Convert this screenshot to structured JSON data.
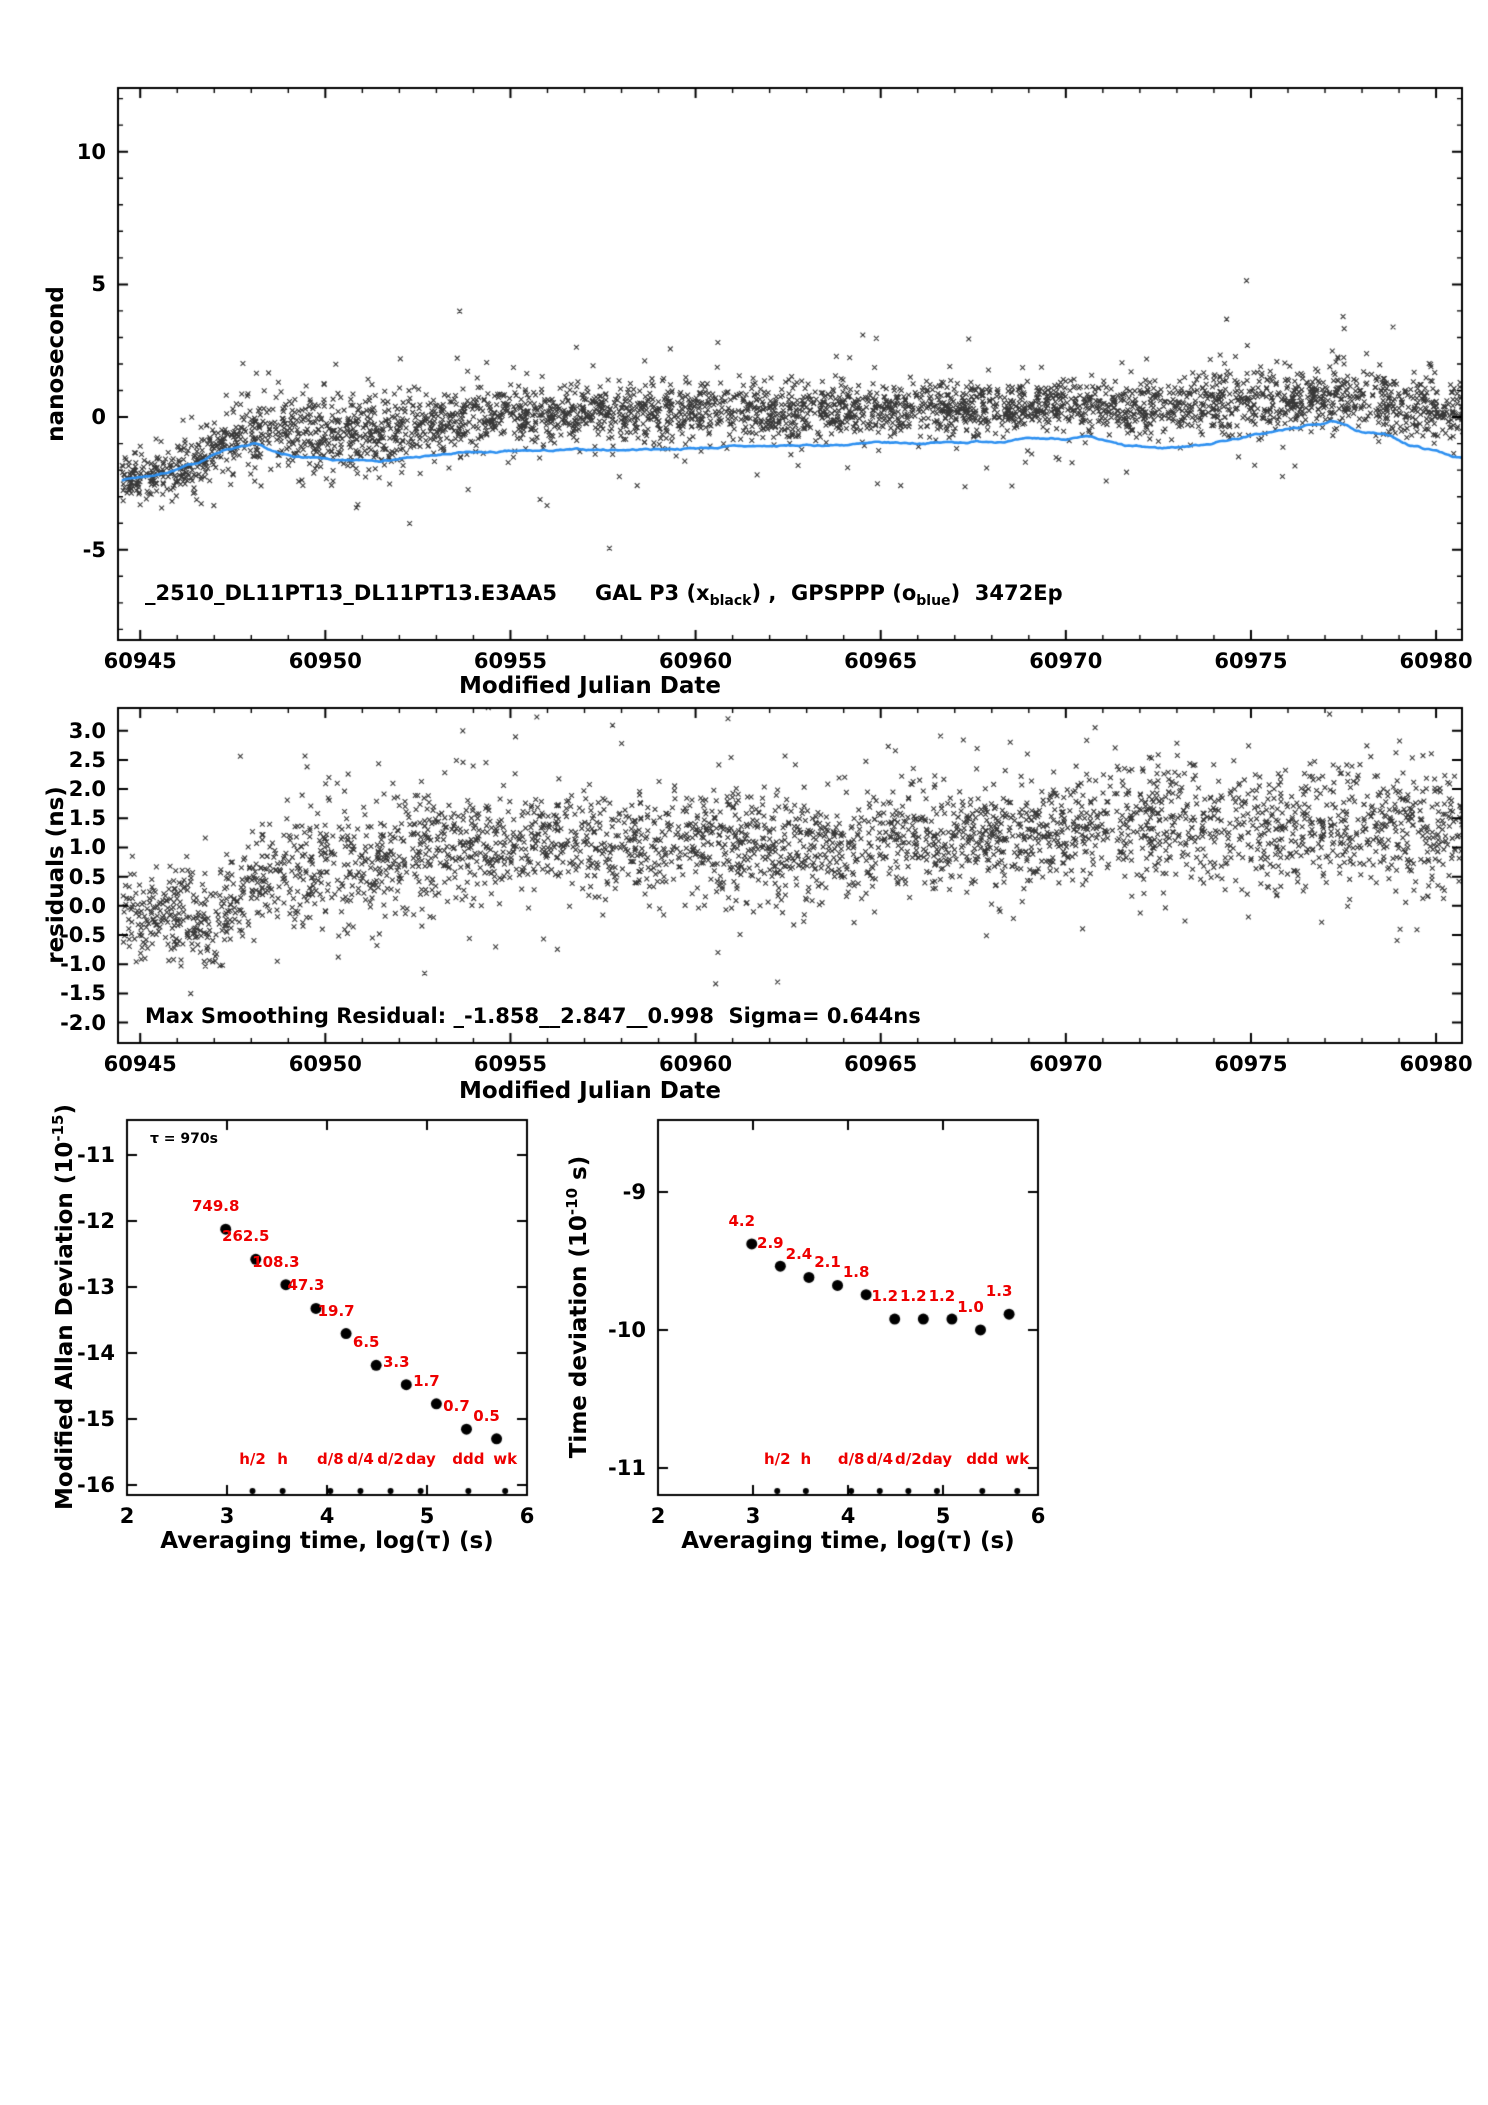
{
  "colors": {
    "background": "#ffffff",
    "axis": "#000000",
    "marker": "#000000",
    "smooth_line": "#2e90f0",
    "accent_red": "#ee0000"
  },
  "chart_data": [
    {
      "panel_id": "top",
      "type": "scatter",
      "xlabel": "Modified Julian Date",
      "ylabel": "nanosecond",
      "xlim": [
        60944.4,
        60980.7
      ],
      "ylim": [
        -8.4,
        12.4
      ],
      "xticks": [
        60945,
        60950,
        60955,
        60960,
        60965,
        60970,
        60975,
        60980
      ],
      "xtick_labels": [
        "60945",
        "60950",
        "60955",
        "60960",
        "60965",
        "60970",
        "60975",
        "60980"
      ],
      "yticks": [
        -5,
        0,
        5,
        10
      ],
      "ytick_labels": [
        "-5",
        "0",
        "5",
        "10"
      ],
      "x_minor_step": 1,
      "y_minor_step": 1,
      "box": {
        "l": 118,
        "t": 88,
        "r": 1462,
        "b": 640
      },
      "annotation": {
        "id": "_2510_DL11PT13_DL11PT13.E3AA5",
        "gal": "GAL P3 (x",
        "gal_sub": "black",
        "mid": ") ,  GPSPPP (o",
        "gps_sub": "blue",
        "tail": ")  3472Ep"
      },
      "series": [
        {
          "name": "GAL P3 scatter",
          "kind": "scatter-x",
          "seed": 42,
          "n": 3600,
          "outlier_frac": 0.07,
          "outlier_sigma": 1.3,
          "xrange": [
            60944.5,
            60980.8
          ],
          "sigma_trend": [
            [
              60944.5,
              0.45
            ],
            [
              60947,
              0.5
            ],
            [
              60948.5,
              0.8
            ],
            [
              60951,
              0.75
            ],
            [
              60953,
              0.6
            ],
            [
              60956,
              0.5
            ],
            [
              60960,
              0.55
            ],
            [
              60965,
              0.5
            ],
            [
              60970,
              0.5
            ],
            [
              60975,
              0.55
            ],
            [
              60978,
              0.6
            ],
            [
              60980.8,
              0.6
            ]
          ],
          "trend": [
            [
              60944.5,
              -2.4
            ],
            [
              60946,
              -2.05
            ],
            [
              60947.2,
              -1.1
            ],
            [
              60948.3,
              -0.45
            ],
            [
              60949.5,
              -0.7
            ],
            [
              60950.5,
              -0.8
            ],
            [
              60951.5,
              -0.6
            ],
            [
              60952.5,
              -0.5
            ],
            [
              60953.5,
              -0.05
            ],
            [
              60955,
              0.05
            ],
            [
              60957,
              0.1
            ],
            [
              60959,
              0.2
            ],
            [
              60961,
              0.25
            ],
            [
              60963,
              0.2
            ],
            [
              60965,
              0.3
            ],
            [
              60967,
              0.35
            ],
            [
              60969,
              0.45
            ],
            [
              60971,
              0.4
            ],
            [
              60973,
              0.35
            ],
            [
              60975,
              0.55
            ],
            [
              60976.5,
              0.75
            ],
            [
              60977.5,
              0.8
            ],
            [
              60978.5,
              0.55
            ],
            [
              60979.5,
              0.35
            ],
            [
              60980.8,
              0.2
            ]
          ]
        },
        {
          "name": "GPSPPP smoothed line",
          "kind": "line",
          "seed": 7,
          "color": "#2e90f0",
          "step": 0.05,
          "xrange": [
            60944.5,
            60980.8
          ],
          "trend": [
            [
              60944.5,
              -2.35
            ],
            [
              60945.5,
              -2.15
            ],
            [
              60946.5,
              -1.75
            ],
            [
              60947.3,
              -1.2
            ],
            [
              60948.1,
              -1.05
            ],
            [
              60948.8,
              -1.45
            ],
            [
              60949.6,
              -1.55
            ],
            [
              60950.6,
              -1.7
            ],
            [
              60951.6,
              -1.6
            ],
            [
              60952.6,
              -1.5
            ],
            [
              60953.6,
              -1.38
            ],
            [
              60955,
              -1.32
            ],
            [
              60957,
              -1.25
            ],
            [
              60959,
              -1.2
            ],
            [
              60961,
              -1.12
            ],
            [
              60963,
              -1.08
            ],
            [
              60965,
              -1.0
            ],
            [
              60967,
              -0.95
            ],
            [
              60969,
              -0.85
            ],
            [
              60970.6,
              -0.78
            ],
            [
              60971.6,
              -1.12
            ],
            [
              60972.6,
              -1.18
            ],
            [
              60973.6,
              -1.05
            ],
            [
              60975,
              -0.7
            ],
            [
              60976.3,
              -0.4
            ],
            [
              60977.2,
              -0.15
            ],
            [
              60977.8,
              -0.5
            ],
            [
              60978.6,
              -0.65
            ],
            [
              60979.3,
              -1.05
            ],
            [
              60980.2,
              -1.35
            ],
            [
              60980.8,
              -1.6
            ]
          ]
        }
      ]
    },
    {
      "panel_id": "residuals",
      "type": "scatter",
      "xlabel": "Modified Julian Date",
      "ylabel": "residuals (ns)",
      "xlim": [
        60944.4,
        60980.7
      ],
      "ylim": [
        -2.35,
        3.39
      ],
      "xticks": [
        60945,
        60950,
        60955,
        60960,
        60965,
        60970,
        60975,
        60980
      ],
      "xtick_labels": [
        "60945",
        "60950",
        "60955",
        "60960",
        "60965",
        "60970",
        "60975",
        "60980"
      ],
      "yticks": [
        -2,
        -1.5,
        -1,
        -0.5,
        0,
        0.5,
        1,
        1.5,
        2,
        2.5,
        3
      ],
      "ytick_labels": [
        "-2.0",
        "-1.5",
        "-1.0",
        "-0.5",
        "0.0",
        "0.5",
        "1.0",
        "1.5",
        "2.0",
        "2.5",
        "3.0"
      ],
      "x_minor_step": 1,
      "box": {
        "l": 118,
        "t": 708,
        "r": 1462,
        "b": 1043
      },
      "annotation": {
        "text": "Max Smoothing Residual: _-1.858__2.847__0.998  Sigma= 0.644ns"
      },
      "series": [
        {
          "name": "residuals scatter",
          "kind": "scatter-x",
          "seed": 99,
          "n": 3300,
          "outlier_frac": 0.06,
          "outlier_sigma": 0.9,
          "xrange": [
            60944.5,
            60980.8
          ],
          "sigma_trend": [
            [
              60944.5,
              0.35
            ],
            [
              60947,
              0.4
            ],
            [
              60949,
              0.45
            ],
            [
              60952,
              0.5
            ],
            [
              60955,
              0.45
            ],
            [
              60960,
              0.45
            ],
            [
              60965,
              0.45
            ],
            [
              60970,
              0.5
            ],
            [
              60975,
              0.5
            ],
            [
              60980.8,
              0.5
            ]
          ],
          "trend": [
            [
              60944.5,
              -0.05
            ],
            [
              60946,
              -0.15
            ],
            [
              60947,
              -0.3
            ],
            [
              60947.8,
              0.2
            ],
            [
              60948.6,
              0.55
            ],
            [
              60950,
              0.75
            ],
            [
              60951.3,
              0.65
            ],
            [
              60952.2,
              1.05
            ],
            [
              60953.5,
              1.15
            ],
            [
              60955,
              1.1
            ],
            [
              60957,
              1.05
            ],
            [
              60959,
              1.0
            ],
            [
              60961,
              1.05
            ],
            [
              60963,
              0.95
            ],
            [
              60965,
              1.1
            ],
            [
              60967,
              1.2
            ],
            [
              60969,
              1.25
            ],
            [
              60971,
              1.35
            ],
            [
              60973,
              1.4
            ],
            [
              60975,
              1.35
            ],
            [
              60977,
              1.3
            ],
            [
              60979,
              1.4
            ],
            [
              60980.8,
              1.4
            ]
          ]
        }
      ]
    },
    {
      "panel_id": "mdev",
      "type": "scatter",
      "xlabel": "Averaging time, log(τ) (s)",
      "ylabel_parts": {
        "pre": "Modified Allan Deviation (10",
        "sup": "-15",
        "post": ")"
      },
      "tau_annotation": "τ = 970s",
      "xlim": [
        2,
        6
      ],
      "ylim": [
        -16.152,
        -10.47
      ],
      "xticks": [
        2,
        3,
        4,
        5,
        6
      ],
      "xtick_labels": [
        "2",
        "3",
        "4",
        "5",
        "6"
      ],
      "yticks": [
        -16,
        -15,
        -14,
        -13,
        -12,
        -11
      ],
      "ytick_labels": [
        "-16",
        "-15",
        "-14",
        "-13",
        "-12",
        "-11"
      ],
      "box": {
        "l": 127,
        "t": 1120,
        "r": 527,
        "b": 1495
      },
      "points": {
        "log_tau": [
          2.9868,
          3.2878,
          3.5888,
          3.8898,
          4.1908,
          4.4918,
          4.7928,
          5.0938,
          5.3948,
          5.6958
        ],
        "log_dev": [
          -12.125,
          -12.581,
          -12.965,
          -13.325,
          -13.706,
          -14.187,
          -14.481,
          -14.77,
          -15.155,
          -15.301
        ],
        "labels": [
          "749.8",
          "262.5",
          "108.3",
          "47.3",
          "19.7",
          "6.5",
          "3.3",
          "1.7",
          "0.7",
          "0.5"
        ]
      },
      "time_marks": [
        {
          "label": "h/2",
          "log_tau": 3.2553
        },
        {
          "label": "h",
          "log_tau": 3.5563
        },
        {
          "label": "d/8",
          "log_tau": 4.0334
        },
        {
          "label": "d/4",
          "log_tau": 4.3345
        },
        {
          "label": "d/2",
          "log_tau": 4.6355
        },
        {
          "label": "day",
          "log_tau": 4.9365
        },
        {
          "label": "ddd",
          "log_tau": 5.4137
        },
        {
          "label": "wk",
          "log_tau": 5.7818
        }
      ]
    },
    {
      "panel_id": "tdev",
      "type": "scatter",
      "xlabel": "Averaging time, log(τ) (s)",
      "ylabel_parts": {
        "pre": "Time deviation (10",
        "sup": "-10",
        "post": " s)"
      },
      "xlim": [
        2,
        6
      ],
      "ylim": [
        -11.196,
        -8.479
      ],
      "xticks": [
        2,
        3,
        4,
        5,
        6
      ],
      "xtick_labels": [
        "2",
        "3",
        "4",
        "5",
        "6"
      ],
      "yticks": [
        -11,
        -10,
        -9
      ],
      "ytick_labels": [
        "-11",
        "-10",
        "-9"
      ],
      "box": {
        "l": 658,
        "t": 1120,
        "r": 1038,
        "b": 1495
      },
      "points": {
        "log_tau": [
          2.9868,
          3.2878,
          3.5888,
          3.8898,
          4.1908,
          4.4918,
          4.7928,
          5.0938,
          5.3948,
          5.6958
        ],
        "log_dev": [
          -9.377,
          -9.538,
          -9.62,
          -9.678,
          -9.745,
          -9.921,
          -9.921,
          -9.921,
          -10.0,
          -9.886
        ],
        "labels": [
          "4.2",
          "2.9",
          "2.4",
          "2.1",
          "1.8",
          "1.2",
          "1.2",
          "1.2",
          "1.0",
          "1.3"
        ]
      },
      "time_marks": [
        {
          "label": "h/2",
          "log_tau": 3.2553
        },
        {
          "label": "h",
          "log_tau": 3.5563
        },
        {
          "label": "d/8",
          "log_tau": 4.0334
        },
        {
          "label": "d/4",
          "log_tau": 4.3345
        },
        {
          "label": "d/2",
          "log_tau": 4.6355
        },
        {
          "label": "day",
          "log_tau": 4.9365
        },
        {
          "label": "ddd",
          "log_tau": 5.4137
        },
        {
          "label": "wk",
          "log_tau": 5.7818
        }
      ]
    }
  ]
}
